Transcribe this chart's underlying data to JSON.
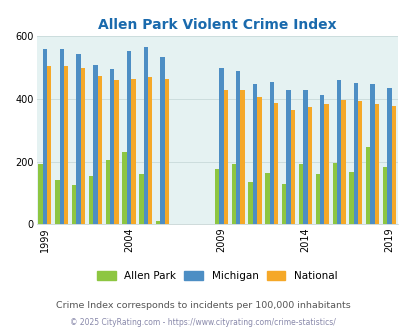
{
  "title": "Allen Park Violent Crime Index",
  "years": [
    1999,
    2000,
    2001,
    2002,
    2003,
    2004,
    2005,
    2006,
    2007,
    2008,
    2009,
    2010,
    2011,
    2012,
    2013,
    2014,
    2015,
    2016,
    2017,
    2018,
    2019
  ],
  "allen_park": [
    193,
    143,
    125,
    153,
    205,
    230,
    160,
    10,
    0,
    0,
    178,
    192,
    135,
    163,
    128,
    194,
    162,
    197,
    167,
    248,
    182
  ],
  "michigan": [
    558,
    558,
    545,
    510,
    495,
    552,
    565,
    535,
    0,
    0,
    500,
    488,
    448,
    455,
    428,
    428,
    412,
    460,
    450,
    448,
    435
  ],
  "national": [
    506,
    506,
    500,
    472,
    460,
    463,
    470,
    463,
    0,
    0,
    430,
    430,
    405,
    388,
    366,
    373,
    383,
    398,
    395,
    383,
    378
  ],
  "color_allen_park": "#8dc641",
  "color_michigan": "#4d8ec4",
  "color_national": "#f5a828",
  "xlabel_tick_years": [
    1999,
    2004,
    2009,
    2014,
    2019
  ],
  "ylim": [
    0,
    600
  ],
  "yticks": [
    0,
    200,
    400,
    600
  ],
  "bg_color": "#e5f2f2",
  "subtitle": "Crime Index corresponds to incidents per 100,000 inhabitants",
  "footer": "© 2025 CityRating.com - https://www.cityrating.com/crime-statistics/",
  "title_color": "#1a6aad",
  "subtitle_color": "#555555",
  "footer_color": "#8888aa",
  "legend_labels": [
    "Allen Park",
    "Michigan",
    "National"
  ],
  "figsize": [
    4.06,
    3.3
  ],
  "dpi": 100
}
